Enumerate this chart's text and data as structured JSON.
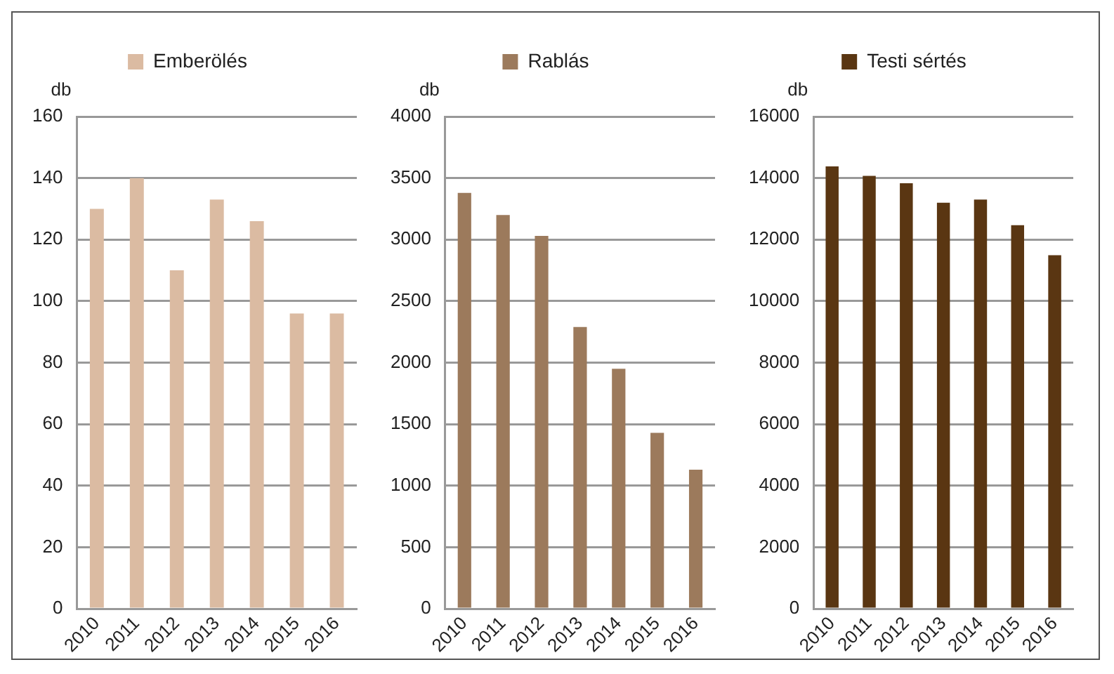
{
  "chart_data": [
    {
      "type": "bar",
      "ylabel": "db",
      "categories": [
        "2010",
        "2011",
        "2012",
        "2013",
        "2014",
        "2015",
        "2016"
      ],
      "series": [
        {
          "name": "Emberölés",
          "color": "#dbbba2",
          "values": [
            130,
            140,
            110,
            133,
            126,
            96,
            96
          ]
        }
      ],
      "ylim": [
        0,
        160
      ],
      "yticks": [
        0,
        20,
        40,
        60,
        80,
        100,
        120,
        140,
        160
      ],
      "grid": "y",
      "legend": "top"
    },
    {
      "type": "bar",
      "ylabel": "db",
      "categories": [
        "2010",
        "2011",
        "2012",
        "2013",
        "2014",
        "2015",
        "2016"
      ],
      "series": [
        {
          "name": "Rablás",
          "color": "#9c7a5c",
          "values": [
            3380,
            3200,
            3030,
            2290,
            1950,
            1430,
            1130
          ]
        }
      ],
      "ylim": [
        0,
        4000
      ],
      "yticks": [
        0,
        500,
        1000,
        1500,
        2000,
        2500,
        3000,
        3500,
        4000
      ],
      "grid": "y",
      "legend": "top"
    },
    {
      "type": "bar",
      "ylabel": "db",
      "categories": [
        "2010",
        "2011",
        "2012",
        "2013",
        "2014",
        "2015",
        "2016"
      ],
      "series": [
        {
          "name": "Testi sértés",
          "color": "#5a3612",
          "values": [
            14380,
            14070,
            13830,
            13200,
            13300,
            12470,
            11490
          ]
        }
      ],
      "ylim": [
        0,
        16000
      ],
      "yticks": [
        0,
        2000,
        4000,
        6000,
        8000,
        10000,
        12000,
        14000,
        16000
      ],
      "grid": "y",
      "legend": "top"
    }
  ]
}
